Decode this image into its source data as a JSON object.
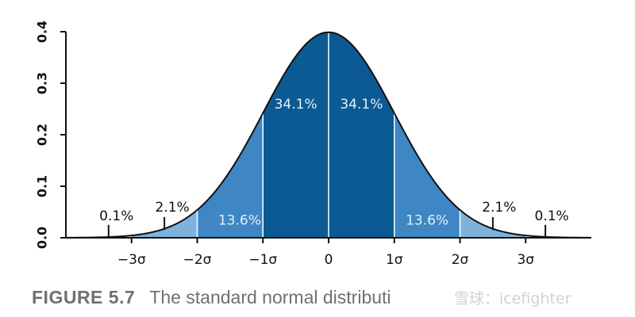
{
  "chart_data": {
    "type": "area",
    "series": [
      {
        "x_range": [
          -4,
          4
        ],
        "distribution": "standard normal",
        "mean": 0,
        "sd": 1
      }
    ],
    "xlim": [
      -4,
      4
    ],
    "ylim": [
      0,
      0.4
    ],
    "yticks": [
      0.0,
      0.1,
      0.2,
      0.3,
      0.4
    ],
    "ytick_labels": [
      "0.0",
      "0.1",
      "0.2",
      "0.3",
      "0.4"
    ],
    "xticks": [
      -3,
      -2,
      -1,
      0,
      1,
      2,
      3
    ],
    "xtick_labels": [
      "−3σ",
      "−2σ",
      "−1σ",
      "0",
      "1σ",
      "2σ",
      "3σ"
    ],
    "regions": [
      {
        "from": -4,
        "to": -3,
        "label": "0.1%",
        "color": "#ffffff"
      },
      {
        "from": -3,
        "to": -2,
        "label": "2.1%",
        "color": "#7eb2dd"
      },
      {
        "from": -2,
        "to": -1,
        "label": "13.6%",
        "color": "#3e87c4"
      },
      {
        "from": -1,
        "to": 0,
        "label": "34.1%",
        "color": "#0b5a93"
      },
      {
        "from": 0,
        "to": 1,
        "label": "34.1%",
        "color": "#0b5a93"
      },
      {
        "from": 1,
        "to": 2,
        "label": "13.6%",
        "color": "#3e87c4"
      },
      {
        "from": 2,
        "to": 3,
        "label": "2.1%",
        "color": "#7eb2dd"
      },
      {
        "from": 3,
        "to": 4,
        "label": "0.1%",
        "color": "#ffffff"
      }
    ]
  },
  "caption": {
    "figure": "FIGURE 5.7",
    "text": "The standard normal distributi"
  },
  "watermark": "雪球：icefighter"
}
